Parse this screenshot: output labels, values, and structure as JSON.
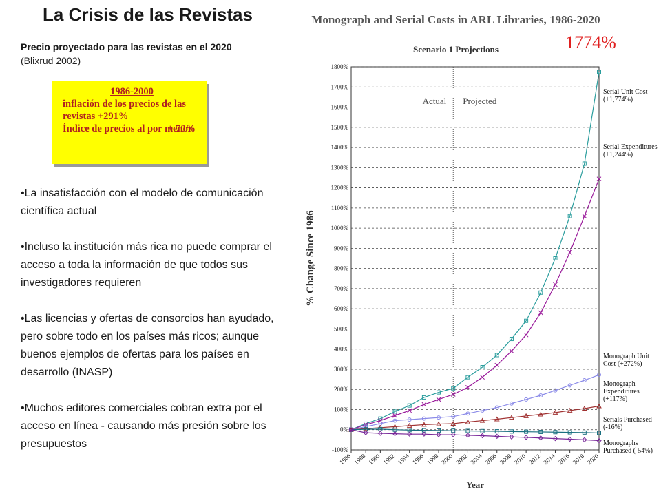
{
  "slide": {
    "title": "La Crisis de las Revistas",
    "subtitle": "Precio proyectado para las revistas en el 2020",
    "source": "(Blixrud 2002)",
    "box": {
      "heading": "1986-2000",
      "line1": "inflación de los precios de las revistas  +291%",
      "line2": "Índice de precios al por menor",
      "line2_value": "+ 70%"
    },
    "bullets": [
      "•La insatisfacción con el modelo de comunicación científica actual",
      "•Incluso la institución más rica no puede comprar el acceso a toda la información de que todos sus investigadores requieren",
      "•Las licencias y ofertas de consorcios han ayudado, pero sobre todo en los países más ricos; aunque buenos ejemplos de ofertas para los países en desarrollo (INASP)",
      "•Muchos editores comerciales cobran extra por el acceso en línea - causando más presión sobre los presupuestos"
    ]
  },
  "chart_data": {
    "type": "line",
    "title": "Monograph and Serial Costs in ARL Libraries, 1986-2020",
    "subtitle": "Scenario 1 Projections",
    "annotation": "1774%",
    "region_labels": [
      "Actual",
      "Projected"
    ],
    "divider_x": 2000,
    "x_label": "Year",
    "y_label": "% Change Since 1986",
    "x": [
      1986,
      1988,
      1990,
      1992,
      1994,
      1996,
      1998,
      2000,
      2002,
      2004,
      2006,
      2008,
      2010,
      2012,
      2014,
      2016,
      2018,
      2020
    ],
    "xlim": [
      1986,
      2020
    ],
    "xticks": [
      1986,
      1988,
      1990,
      1992,
      1994,
      1996,
      1998,
      2000,
      2002,
      2004,
      2006,
      2008,
      2010,
      2012,
      2014,
      2016,
      2018,
      2020
    ],
    "ylim": [
      -100,
      1800
    ],
    "yticks": [
      {
        "value": -100,
        "label": "-100%"
      },
      {
        "value": 0,
        "label": "0%"
      },
      {
        "value": 100,
        "label": "100%"
      },
      {
        "value": 200,
        "label": "200%"
      },
      {
        "value": 300,
        "label": "300%"
      },
      {
        "value": 400,
        "label": "400%"
      },
      {
        "value": 500,
        "label": "500%"
      },
      {
        "value": 600,
        "label": "600%"
      },
      {
        "value": 700,
        "label": "700%"
      },
      {
        "value": 800,
        "label": "800%"
      },
      {
        "value": 900,
        "label": "900%"
      },
      {
        "value": 1000,
        "label": "1000%"
      },
      {
        "value": 1100,
        "label": "1100%"
      },
      {
        "value": 1200,
        "label": "1200%"
      },
      {
        "value": 1300,
        "label": "1300%"
      },
      {
        "value": 1400,
        "label": "1400%"
      },
      {
        "value": 1500,
        "label": "1500%"
      },
      {
        "value": 1600,
        "label": "1600%"
      },
      {
        "value": 1700,
        "label": "1700%"
      },
      {
        "value": 1800,
        "label": "1800%"
      }
    ],
    "grid": true,
    "series": [
      {
        "name": "Serial Unit Cost (+1,774%)",
        "color": "#2a9d9d",
        "marker": "square",
        "values": [
          0,
          30,
          55,
          90,
          120,
          160,
          185,
          205,
          260,
          310,
          370,
          450,
          540,
          680,
          850,
          1060,
          1320,
          1774
        ]
      },
      {
        "name": "Serial Expenditures (+1,244%)",
        "color": "#99199a",
        "marker": "cross",
        "values": [
          0,
          25,
          45,
          70,
          95,
          125,
          150,
          175,
          210,
          260,
          320,
          390,
          470,
          580,
          720,
          880,
          1060,
          1244
        ]
      },
      {
        "name": "Monograph Unit Cost (+272%)",
        "color": "#8a8ae8",
        "marker": "circle",
        "values": [
          0,
          15,
          30,
          45,
          50,
          55,
          60,
          65,
          80,
          95,
          110,
          130,
          150,
          170,
          195,
          220,
          245,
          272
        ]
      },
      {
        "name": "Monograph Expenditures (+117%)",
        "color": "#a03030",
        "marker": "triangle",
        "values": [
          0,
          5,
          10,
          15,
          20,
          25,
          28,
          30,
          38,
          45,
          52,
          60,
          68,
          76,
          85,
          95,
          105,
          117
        ]
      },
      {
        "name": "Serials Purchased (-16%)",
        "color": "#1a7080",
        "marker": "square",
        "values": [
          0,
          2,
          3,
          0,
          -2,
          -3,
          -4,
          -5,
          -6,
          -7,
          -8,
          -9,
          -10,
          -11,
          -12,
          -13,
          -14,
          -16
        ]
      },
      {
        "name": "Monographs Purchased (-54%)",
        "color": "#7a2a9a",
        "marker": "diamond",
        "values": [
          0,
          -15,
          -18,
          -20,
          -22,
          -22,
          -25,
          -25,
          -28,
          -30,
          -33,
          -36,
          -38,
          -41,
          -44,
          -47,
          -50,
          -54
        ]
      }
    ]
  }
}
